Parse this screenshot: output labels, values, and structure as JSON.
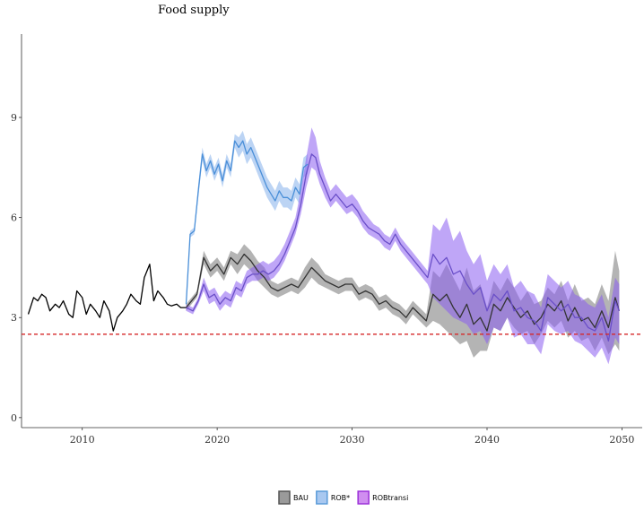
{
  "chart_data": {
    "type": "line",
    "title": "Food supply",
    "xlabel": "",
    "ylabel": "",
    "xlim": [
      2005.5,
      2051.5
    ],
    "ylim": [
      -0.3,
      11.5
    ],
    "x_ticks": [
      2010,
      2020,
      2030,
      2040,
      2050
    ],
    "y_ticks": [
      0,
      3,
      6,
      9
    ],
    "grid": false,
    "legend_position": "bottom",
    "reference_line": {
      "y": 2.5,
      "color": "#d62728",
      "style": "dashed"
    },
    "colors": {
      "historical": "#000000",
      "BAU": "#333333",
      "ROB": "#5a9bd8",
      "ROBtransi": "#9b30d9",
      "projection_overlap": "#7b68d9",
      "reference": "#d62728"
    },
    "historical": {
      "x": [
        2006,
        2006.4,
        2006.7,
        2007,
        2007.3,
        2007.6,
        2008,
        2008.3,
        2008.6,
        2009,
        2009.3,
        2009.6,
        2010,
        2010.3,
        2010.6,
        2011,
        2011.3,
        2011.6,
        2012,
        2012.3,
        2012.6,
        2013,
        2013.3,
        2013.6,
        2014,
        2014.3,
        2014.6,
        2015,
        2015.3,
        2015.6,
        2016,
        2016.3,
        2016.6,
        2017,
        2017.3,
        2017.7
      ],
      "y": [
        3.1,
        3.6,
        3.5,
        3.7,
        3.6,
        3.2,
        3.4,
        3.3,
        3.5,
        3.1,
        3.0,
        3.8,
        3.6,
        3.1,
        3.4,
        3.2,
        3.0,
        3.5,
        3.2,
        2.6,
        3.0,
        3.2,
        3.4,
        3.7,
        3.5,
        3.4,
        4.2,
        4.6,
        3.5,
        3.8,
        3.6,
        3.4,
        3.35,
        3.4,
        3.3,
        3.3
      ]
    },
    "series": [
      {
        "name": "BAU",
        "x": [
          2017.7,
          2018.5,
          2019,
          2019.5,
          2020,
          2020.5,
          2021,
          2021.5,
          2022,
          2022.5,
          2023,
          2023.5,
          2024,
          2024.5,
          2025,
          2025.5,
          2026,
          2026.5,
          2027,
          2027.5,
          2028,
          2028.5,
          2029,
          2029.5,
          2030,
          2030.5,
          2031,
          2031.5,
          2032,
          2032.5,
          2033,
          2033.5,
          2034,
          2034.5,
          2035,
          2035.5,
          2036,
          2036.5,
          2037,
          2037.5,
          2038,
          2038.5,
          2039,
          2039.5,
          2040,
          2040.5,
          2041,
          2041.5,
          2042,
          2042.5,
          2043,
          2043.5,
          2044,
          2044.5,
          2045,
          2045.5,
          2046,
          2046.5,
          2047,
          2047.5,
          2048,
          2048.5,
          2049,
          2049.5,
          2049.8
        ],
        "y": [
          3.3,
          3.7,
          4.8,
          4.4,
          4.6,
          4.3,
          4.8,
          4.6,
          4.9,
          4.7,
          4.4,
          4.2,
          3.9,
          3.8,
          3.9,
          4.0,
          3.9,
          4.2,
          4.5,
          4.3,
          4.1,
          4.0,
          3.9,
          4.0,
          4.0,
          3.7,
          3.8,
          3.7,
          3.4,
          3.5,
          3.3,
          3.2,
          3.0,
          3.3,
          3.1,
          2.9,
          3.7,
          3.5,
          3.7,
          3.3,
          3.0,
          3.4,
          2.8,
          3.0,
          2.6,
          3.4,
          3.2,
          3.6,
          3.3,
          3.0,
          3.2,
          2.8,
          3.0,
          3.4,
          3.2,
          3.5,
          2.9,
          3.3,
          2.9,
          3.0,
          2.7,
          3.2,
          2.7,
          3.6,
          3.2
        ],
        "lower": [
          3.2,
          3.6,
          4.6,
          4.2,
          4.4,
          4.1,
          4.6,
          4.3,
          4.6,
          4.4,
          4.1,
          3.9,
          3.7,
          3.6,
          3.7,
          3.8,
          3.7,
          3.9,
          4.2,
          4.0,
          3.9,
          3.8,
          3.7,
          3.8,
          3.8,
          3.5,
          3.6,
          3.5,
          3.2,
          3.3,
          3.1,
          3.0,
          2.8,
          3.1,
          2.9,
          2.7,
          2.9,
          2.8,
          2.6,
          2.4,
          2.2,
          2.3,
          1.8,
          2.0,
          2.0,
          2.7,
          2.6,
          3.0,
          2.7,
          2.5,
          2.6,
          2.2,
          2.5,
          2.9,
          2.7,
          2.9,
          2.4,
          2.6,
          2.3,
          2.4,
          2.0,
          2.4,
          1.9,
          2.2,
          2.0
        ],
        "upper": [
          3.4,
          3.8,
          5.0,
          4.6,
          4.8,
          4.5,
          5.0,
          4.9,
          5.2,
          5.0,
          4.7,
          4.5,
          4.1,
          4.0,
          4.1,
          4.2,
          4.1,
          4.5,
          4.8,
          4.6,
          4.3,
          4.2,
          4.1,
          4.2,
          4.2,
          3.9,
          4.0,
          3.9,
          3.6,
          3.7,
          3.5,
          3.4,
          3.2,
          3.5,
          3.3,
          3.1,
          4.4,
          4.2,
          4.6,
          4.2,
          3.8,
          4.5,
          3.8,
          4.0,
          3.3,
          4.1,
          3.8,
          4.2,
          3.9,
          3.5,
          3.8,
          3.4,
          3.5,
          3.9,
          3.7,
          4.1,
          3.5,
          4.0,
          3.5,
          3.6,
          3.4,
          4.0,
          3.5,
          5.0,
          4.4
        ]
      },
      {
        "name": "ROB*",
        "x": [
          2017.7,
          2018,
          2018.3,
          2018.6,
          2018.9,
          2019.2,
          2019.5,
          2019.8,
          2020.1,
          2020.4,
          2020.7,
          2021,
          2021.3,
          2021.6,
          2021.9,
          2022.2,
          2022.5,
          2022.8,
          2023.1,
          2023.4,
          2023.7,
          2024,
          2024.3,
          2024.6,
          2024.9,
          2025.2,
          2025.5,
          2025.8,
          2026.1,
          2026.4,
          2026.7
        ],
        "y": [
          3.4,
          5.5,
          5.6,
          6.8,
          7.9,
          7.4,
          7.7,
          7.3,
          7.6,
          7.1,
          7.7,
          7.4,
          8.3,
          8.1,
          8.3,
          7.9,
          8.1,
          7.8,
          7.5,
          7.2,
          6.9,
          6.7,
          6.5,
          6.8,
          6.6,
          6.6,
          6.5,
          6.9,
          6.7,
          7.5,
          7.6
        ],
        "lower": [
          3.3,
          5.4,
          5.5,
          6.6,
          7.7,
          7.2,
          7.5,
          7.1,
          7.4,
          6.9,
          7.5,
          7.2,
          8.1,
          7.8,
          8.0,
          7.6,
          7.8,
          7.5,
          7.2,
          6.9,
          6.6,
          6.4,
          6.2,
          6.5,
          6.3,
          6.3,
          6.2,
          6.6,
          6.4,
          7.2,
          7.3
        ],
        "upper": [
          3.5,
          5.6,
          5.7,
          7.0,
          8.1,
          7.6,
          7.9,
          7.5,
          7.8,
          7.3,
          7.9,
          7.6,
          8.5,
          8.4,
          8.6,
          8.2,
          8.4,
          8.1,
          7.8,
          7.5,
          7.2,
          7.0,
          6.8,
          7.1,
          6.9,
          6.9,
          6.8,
          7.2,
          7.0,
          7.8,
          7.9
        ]
      },
      {
        "name": "ROBtransi",
        "x": [
          2017.7,
          2018.2,
          2018.6,
          2019,
          2019.4,
          2019.8,
          2020.2,
          2020.6,
          2021,
          2021.4,
          2021.8,
          2022.2,
          2022.6,
          2023,
          2023.4,
          2023.8,
          2024.2,
          2024.6,
          2025,
          2025.4,
          2025.8,
          2026.2,
          2026.6,
          2027,
          2027.3,
          2027.6,
          2028,
          2028.4,
          2028.8,
          2029.2,
          2029.6,
          2030,
          2030.4,
          2030.8,
          2031.2,
          2031.6,
          2032,
          2032.4,
          2032.8,
          2033.2,
          2033.6,
          2034,
          2034.4,
          2034.8,
          2035.2,
          2035.6,
          2036,
          2036.5,
          2037,
          2037.5,
          2038,
          2038.5,
          2039,
          2039.5,
          2040,
          2040.5,
          2041,
          2041.5,
          2042,
          2042.5,
          2043,
          2043.5,
          2044,
          2044.5,
          2045,
          2045.5,
          2046,
          2046.5,
          2047,
          2047.5,
          2048,
          2048.5,
          2049,
          2049.5,
          2049.8
        ],
        "y": [
          3.3,
          3.2,
          3.5,
          4.0,
          3.6,
          3.7,
          3.4,
          3.6,
          3.5,
          3.9,
          3.8,
          4.2,
          4.3,
          4.3,
          4.4,
          4.3,
          4.4,
          4.6,
          4.9,
          5.3,
          5.7,
          6.4,
          7.3,
          7.9,
          7.8,
          7.3,
          6.9,
          6.5,
          6.7,
          6.5,
          6.3,
          6.4,
          6.2,
          5.9,
          5.7,
          5.6,
          5.5,
          5.3,
          5.2,
          5.5,
          5.2,
          5.0,
          4.8,
          4.6,
          4.4,
          4.2,
          4.9,
          4.6,
          4.8,
          4.3,
          4.4,
          4.0,
          3.7,
          3.9,
          3.2,
          3.7,
          3.5,
          3.8,
          3.2,
          3.3,
          3.0,
          2.9,
          2.6,
          3.6,
          3.4,
          3.2,
          3.4,
          3.0,
          3.0,
          2.7,
          2.6,
          3.0,
          2.3,
          3.5,
          3.2
        ],
        "lower": [
          3.2,
          3.1,
          3.4,
          3.8,
          3.4,
          3.5,
          3.2,
          3.4,
          3.3,
          3.7,
          3.6,
          4.0,
          4.1,
          4.1,
          4.2,
          4.1,
          4.2,
          4.4,
          4.7,
          5.1,
          5.5,
          6.1,
          6.9,
          7.5,
          7.4,
          7.0,
          6.6,
          6.3,
          6.5,
          6.3,
          6.1,
          6.2,
          6.0,
          5.7,
          5.5,
          5.4,
          5.3,
          5.1,
          5.0,
          5.3,
          5.0,
          4.8,
          4.6,
          4.4,
          4.2,
          4.0,
          3.6,
          3.4,
          3.2,
          3.0,
          2.9,
          2.8,
          2.5,
          2.6,
          2.2,
          2.7,
          2.6,
          3.0,
          2.4,
          2.5,
          2.2,
          2.2,
          1.9,
          2.8,
          2.6,
          2.5,
          2.6,
          2.3,
          2.2,
          2.0,
          1.8,
          2.1,
          1.6,
          2.4,
          2.2
        ],
        "upper": [
          3.4,
          3.3,
          3.6,
          4.2,
          3.8,
          3.9,
          3.6,
          3.8,
          3.7,
          4.1,
          4.0,
          4.4,
          4.5,
          4.6,
          4.7,
          4.6,
          4.7,
          4.9,
          5.2,
          5.6,
          6.0,
          6.8,
          7.8,
          8.7,
          8.4,
          7.7,
          7.2,
          6.8,
          7.0,
          6.8,
          6.6,
          6.7,
          6.5,
          6.2,
          6.0,
          5.8,
          5.7,
          5.5,
          5.4,
          5.7,
          5.4,
          5.2,
          5.0,
          4.8,
          4.6,
          4.4,
          5.8,
          5.6,
          6.0,
          5.3,
          5.6,
          5.0,
          4.6,
          4.9,
          4.1,
          4.6,
          4.3,
          4.6,
          3.9,
          4.1,
          3.8,
          3.7,
          3.3,
          4.3,
          4.1,
          3.9,
          4.1,
          3.7,
          3.6,
          3.4,
          3.3,
          3.7,
          3.0,
          4.2,
          4.0
        ]
      }
    ]
  },
  "legend": {
    "items": [
      {
        "label": "BAU",
        "fill": "#9a9a9a",
        "stroke": "#555555"
      },
      {
        "label": "ROB*",
        "fill": "#a8c8f0",
        "stroke": "#5a9bd8"
      },
      {
        "label": "ROBtransi",
        "fill": "#d08ef0",
        "stroke": "#9b30d9"
      }
    ]
  }
}
